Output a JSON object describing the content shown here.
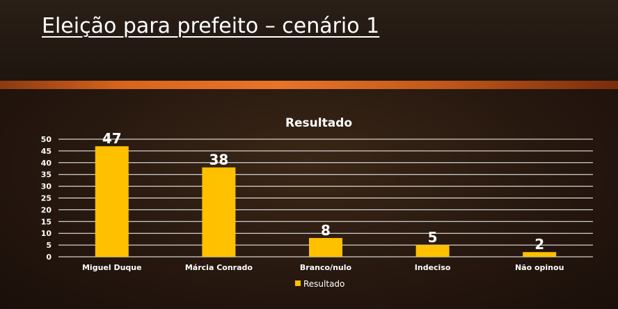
{
  "slide": {
    "title": "Eleição para prefeito – cenário 1"
  },
  "colors": {
    "bar": "#ffc000",
    "accent_band": "#d9651c",
    "text": "#ffffff",
    "gridline": "#ffffff"
  },
  "chart_data": {
    "type": "bar",
    "title": "Resultado",
    "categories": [
      "Miguel Duque",
      "Márcia Conrado",
      "Branco/nulo",
      "Indeciso",
      "Não opinou"
    ],
    "series": [
      {
        "name": "Resultado",
        "values": [
          47,
          38,
          8,
          5,
          2
        ]
      }
    ],
    "xlabel": "",
    "ylabel": "",
    "ylim": [
      0,
      50
    ],
    "yticks": [
      0,
      5,
      10,
      15,
      20,
      25,
      30,
      35,
      40,
      45,
      50
    ],
    "grid": true,
    "data_labels": true,
    "legend": "bottom"
  }
}
